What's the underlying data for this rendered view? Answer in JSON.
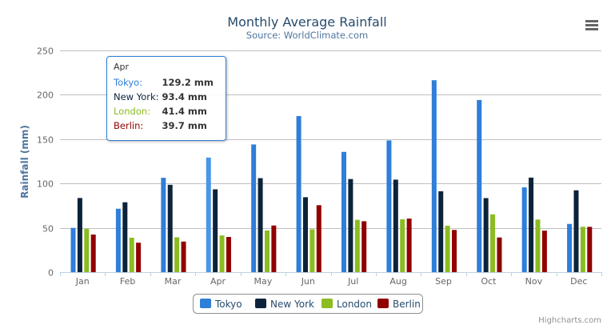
{
  "chart_data": {
    "type": "bar",
    "title": "Monthly Average Rainfall",
    "subtitle": "Source: WorldClimate.com",
    "xlabel": "",
    "ylabel": "Rainfall (mm)",
    "ylim": [
      0,
      250
    ],
    "yticks": [
      "0",
      "50",
      "100",
      "150",
      "200",
      "250"
    ],
    "grid": true,
    "legend_position": "bottom",
    "categories": [
      "Jan",
      "Feb",
      "Mar",
      "Apr",
      "May",
      "Jun",
      "Jul",
      "Aug",
      "Sep",
      "Oct",
      "Nov",
      "Dec"
    ],
    "series": [
      {
        "name": "Tokyo",
        "color": "#2f7ed8",
        "values": [
          49.9,
          71.5,
          106.4,
          129.2,
          144.0,
          176.0,
          135.6,
          148.5,
          216.4,
          194.1,
          95.6,
          54.4
        ]
      },
      {
        "name": "New York",
        "color": "#0d233a",
        "values": [
          83.6,
          78.8,
          98.5,
          93.4,
          106.0,
          84.5,
          105.0,
          104.3,
          91.2,
          83.5,
          106.6,
          92.3
        ]
      },
      {
        "name": "London",
        "color": "#8bbc21",
        "values": [
          48.9,
          38.8,
          39.3,
          41.4,
          47.0,
          48.3,
          59.0,
          59.6,
          52.4,
          65.2,
          59.3,
          51.2
        ]
      },
      {
        "name": "Berlin",
        "color": "#910000",
        "values": [
          42.4,
          33.2,
          34.5,
          39.7,
          52.6,
          75.5,
          57.4,
          60.4,
          47.6,
          39.1,
          46.8,
          51.1
        ]
      }
    ],
    "credits": "Highcharts.com"
  },
  "tooltip": {
    "header": "Apr",
    "rows": [
      {
        "label": "Tokyo:",
        "value": "129.2 mm",
        "color": "#2f7ed8"
      },
      {
        "label": "New York:",
        "value": "93.4 mm",
        "color": "#0d233a"
      },
      {
        "label": "London:",
        "value": "41.4 mm",
        "color": "#8bbc21"
      },
      {
        "label": "Berlin:",
        "value": "39.7 mm",
        "color": "#910000"
      }
    ]
  },
  "menu_icon": "hamburger-menu-icon"
}
